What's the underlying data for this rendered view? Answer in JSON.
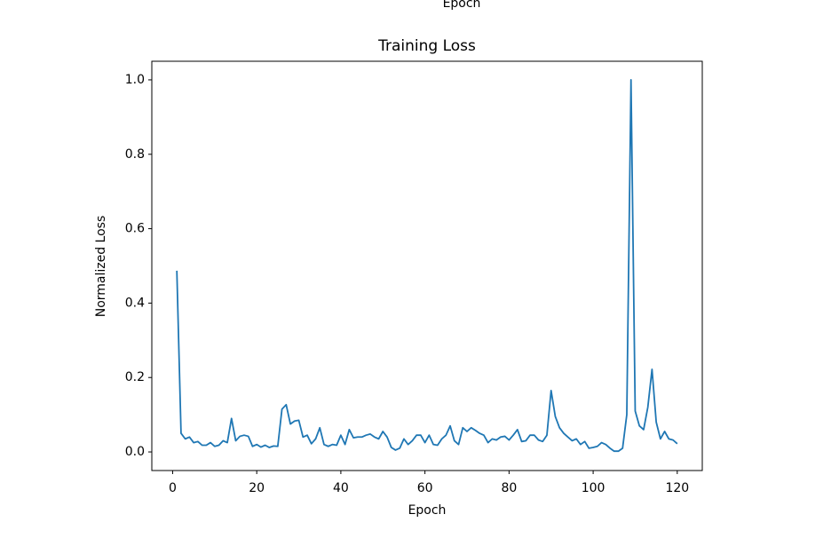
{
  "top_text": "Epoch",
  "chart_data": {
    "type": "line",
    "title": "Training Loss",
    "x_label": "Epoch",
    "y_label": "Normalized Loss",
    "color": "#1f77b4",
    "x": [
      1,
      2,
      3,
      4,
      5,
      6,
      7,
      8,
      9,
      10,
      11,
      12,
      13,
      14,
      15,
      16,
      17,
      18,
      19,
      20,
      21,
      22,
      23,
      24,
      25,
      26,
      27,
      28,
      29,
      30,
      31,
      32,
      33,
      34,
      35,
      36,
      37,
      38,
      39,
      40,
      41,
      42,
      43,
      44,
      45,
      46,
      47,
      48,
      49,
      50,
      51,
      52,
      53,
      54,
      55,
      56,
      57,
      58,
      59,
      60,
      61,
      62,
      63,
      64,
      65,
      66,
      67,
      68,
      69,
      70,
      71,
      72,
      73,
      74,
      75,
      76,
      77,
      78,
      79,
      80,
      81,
      82,
      83,
      84,
      85,
      86,
      87,
      88,
      89,
      90,
      91,
      92,
      93,
      94,
      95,
      96,
      97,
      98,
      99,
      100,
      101,
      102,
      103,
      104,
      105,
      106,
      107,
      108,
      109,
      110,
      111,
      112,
      113,
      114,
      115,
      116,
      117,
      118,
      119,
      120
    ],
    "values": [
      0.487,
      0.05,
      0.035,
      0.04,
      0.025,
      0.028,
      0.018,
      0.018,
      0.025,
      0.015,
      0.018,
      0.03,
      0.025,
      0.09,
      0.03,
      0.042,
      0.045,
      0.042,
      0.015,
      0.02,
      0.013,
      0.018,
      0.012,
      0.016,
      0.015,
      0.115,
      0.127,
      0.075,
      0.083,
      0.085,
      0.04,
      0.045,
      0.022,
      0.035,
      0.065,
      0.02,
      0.015,
      0.02,
      0.018,
      0.045,
      0.02,
      0.06,
      0.038,
      0.04,
      0.04,
      0.045,
      0.048,
      0.04,
      0.035,
      0.055,
      0.04,
      0.012,
      0.005,
      0.01,
      0.035,
      0.02,
      0.03,
      0.045,
      0.045,
      0.025,
      0.045,
      0.02,
      0.018,
      0.035,
      0.045,
      0.07,
      0.03,
      0.02,
      0.065,
      0.055,
      0.065,
      0.058,
      0.05,
      0.045,
      0.025,
      0.035,
      0.032,
      0.04,
      0.042,
      0.032,
      0.045,
      0.06,
      0.028,
      0.03,
      0.045,
      0.045,
      0.032,
      0.028,
      0.045,
      0.165,
      0.095,
      0.065,
      0.05,
      0.04,
      0.03,
      0.035,
      0.02,
      0.028,
      0.01,
      0.012,
      0.015,
      0.025,
      0.02,
      0.01,
      0.002,
      0.002,
      0.01,
      0.1,
      1.0,
      0.11,
      0.07,
      0.06,
      0.12,
      0.222,
      0.08,
      0.035,
      0.055,
      0.035,
      0.032,
      0.022
    ],
    "xlim": [
      -4.95,
      125.95
    ],
    "ylim": [
      -0.05,
      1.05
    ],
    "xticks": [
      0,
      20,
      40,
      60,
      80,
      100,
      120
    ],
    "yticks": [
      {
        "value": 0,
        "label": "0.0"
      },
      0.2,
      0.4,
      0.6,
      0.8,
      {
        "value": 1,
        "label": "1.0"
      }
    ]
  }
}
